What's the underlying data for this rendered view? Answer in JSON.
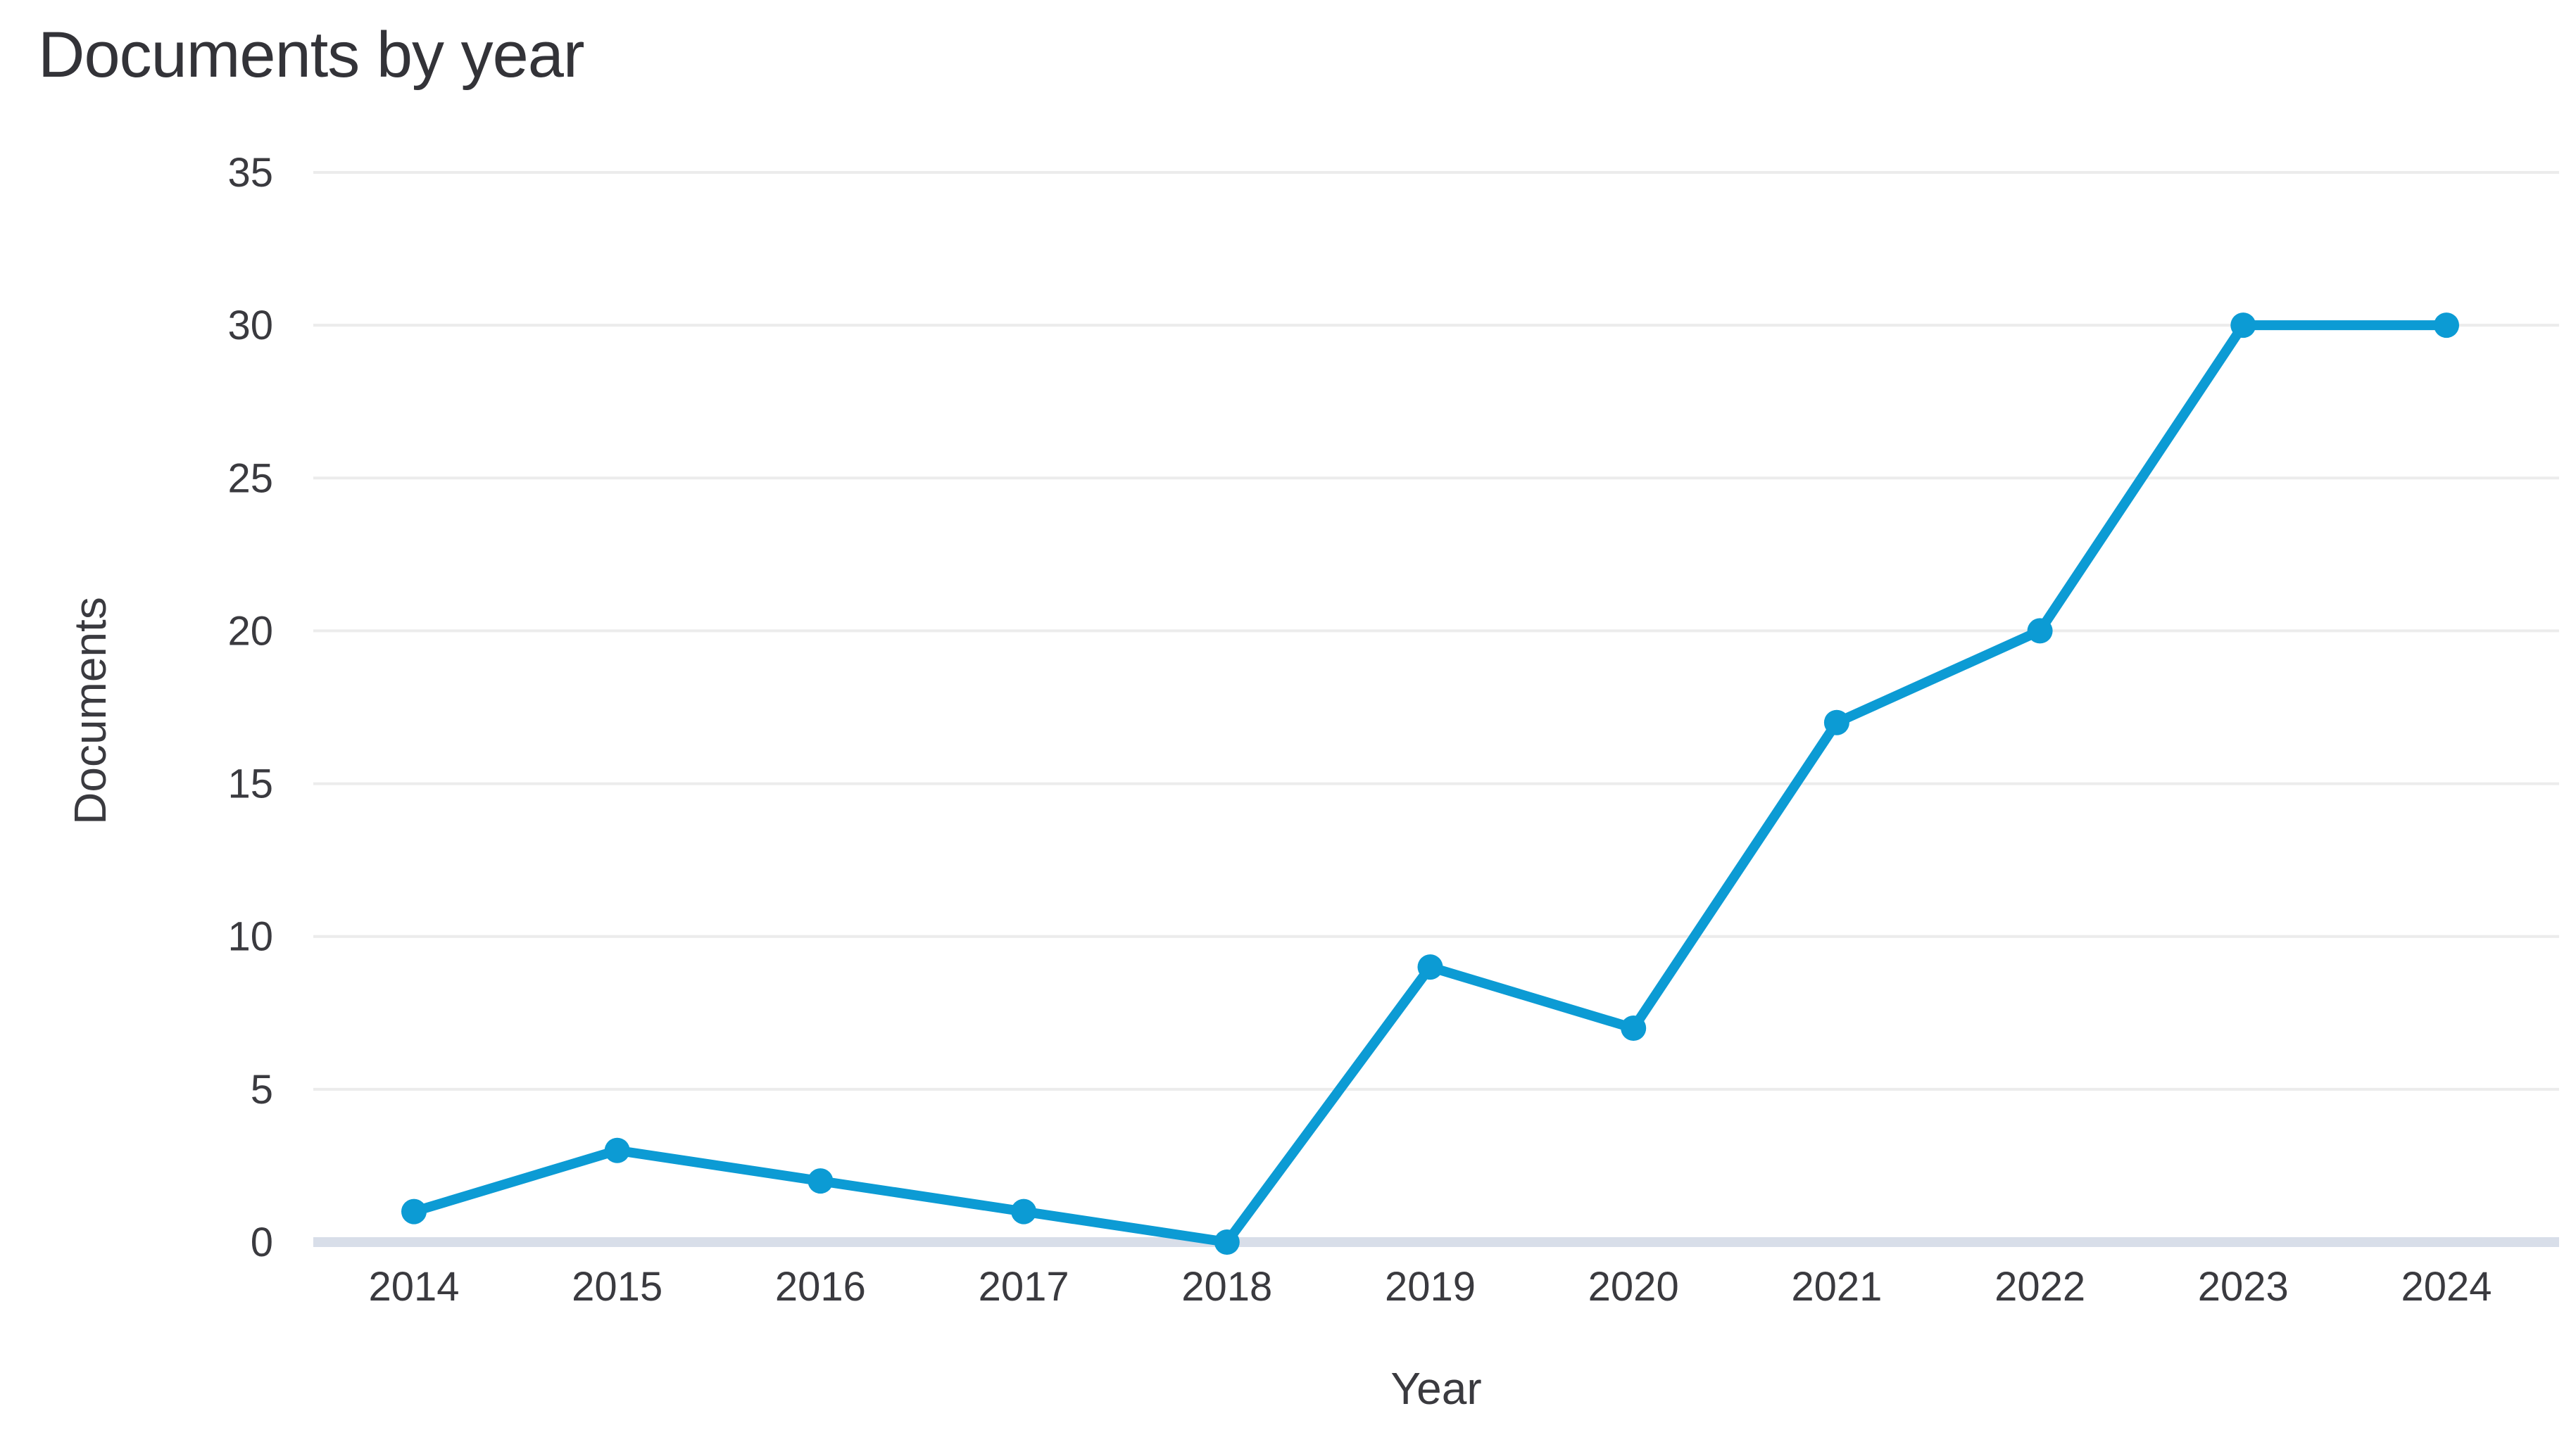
{
  "chart_data": {
    "type": "line",
    "title": "Documents by year",
    "xlabel": "Year",
    "ylabel": "Documents",
    "categories": [
      "2014",
      "2015",
      "2016",
      "2017",
      "2018",
      "2019",
      "2020",
      "2021",
      "2022",
      "2023",
      "2024"
    ],
    "series": [
      {
        "name": "Documents",
        "values": [
          1,
          3,
          2,
          1,
          0,
          9,
          7,
          17,
          20,
          30,
          30
        ]
      }
    ],
    "ylim": [
      0,
      35
    ],
    "yticks": [
      0,
      5,
      10,
      15,
      20,
      25,
      30,
      35
    ],
    "grid": true,
    "legend": "none",
    "marker": "circle"
  },
  "colors": {
    "line": "#0c9bd4",
    "marker": "#0c9bd4",
    "gridline": "#ececec",
    "zero_baseline": "#d8dee9",
    "text": "#3a3a3f",
    "title_text": "#333338",
    "background": "#ffffff"
  }
}
